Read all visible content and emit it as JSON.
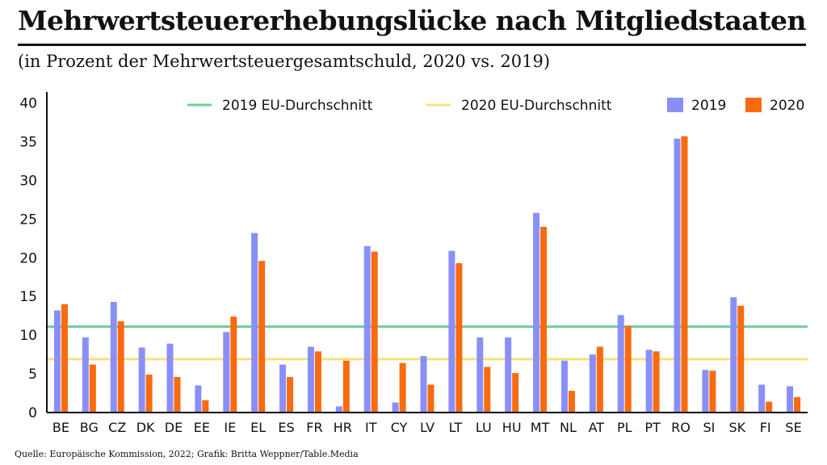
{
  "title": "Mehrwertsteuererhebungslücke nach Mitgliedstaaten",
  "subtitle": "(in Prozent der Mehrwertsteuergesamtschuld, 2020 vs. 2019)",
  "source": "Quelle: Europäische Kommission, 2022; Grafik: Britta Weppner/Table.Media",
  "colors": {
    "s2019": "#8a8ff8",
    "s2020": "#f96b10",
    "avg2019": "#6dcf96",
    "avg2020": "#f8e27a",
    "axis": "#111111"
  },
  "chart_data": {
    "type": "bar",
    "categories": [
      "BE",
      "BG",
      "CZ",
      "DK",
      "DE",
      "EE",
      "IE",
      "EL",
      "ES",
      "FR",
      "HR",
      "IT",
      "CY",
      "LV",
      "LT",
      "LU",
      "HU",
      "MT",
      "NL",
      "AT",
      "PL",
      "PT",
      "RO",
      "SI",
      "SK",
      "FI",
      "SE"
    ],
    "series": [
      {
        "name": "2019",
        "values": [
          13.2,
          9.7,
          14.3,
          8.4,
          8.9,
          3.5,
          10.4,
          23.2,
          6.2,
          8.5,
          0.8,
          21.5,
          1.3,
          7.3,
          20.9,
          9.7,
          9.7,
          25.8,
          6.7,
          7.5,
          12.6,
          8.1,
          35.4,
          5.5,
          14.9,
          3.6,
          3.4
        ]
      },
      {
        "name": "2020",
        "values": [
          14.0,
          6.2,
          11.8,
          4.9,
          4.6,
          1.6,
          12.4,
          19.6,
          4.6,
          7.9,
          6.7,
          20.8,
          6.4,
          3.6,
          19.3,
          5.9,
          5.1,
          24.0,
          2.8,
          8.5,
          11.2,
          7.9,
          35.7,
          5.4,
          13.8,
          1.4,
          2.0
        ]
      }
    ],
    "reference_lines": [
      {
        "name": "2019 EU-Durchschnitt",
        "value": 11.1
      },
      {
        "name": "2020 EU-Durchschnitt",
        "value": 6.9
      }
    ],
    "legend": [
      "2019 EU-Durchschnitt",
      "2020 EU-Durchschnitt",
      "2019",
      "2020"
    ],
    "legend_placement": "top-right",
    "yticks": [
      0,
      5,
      10,
      15,
      20,
      25,
      30,
      35,
      40
    ],
    "ylim": [
      0,
      41
    ],
    "grid": false
  }
}
